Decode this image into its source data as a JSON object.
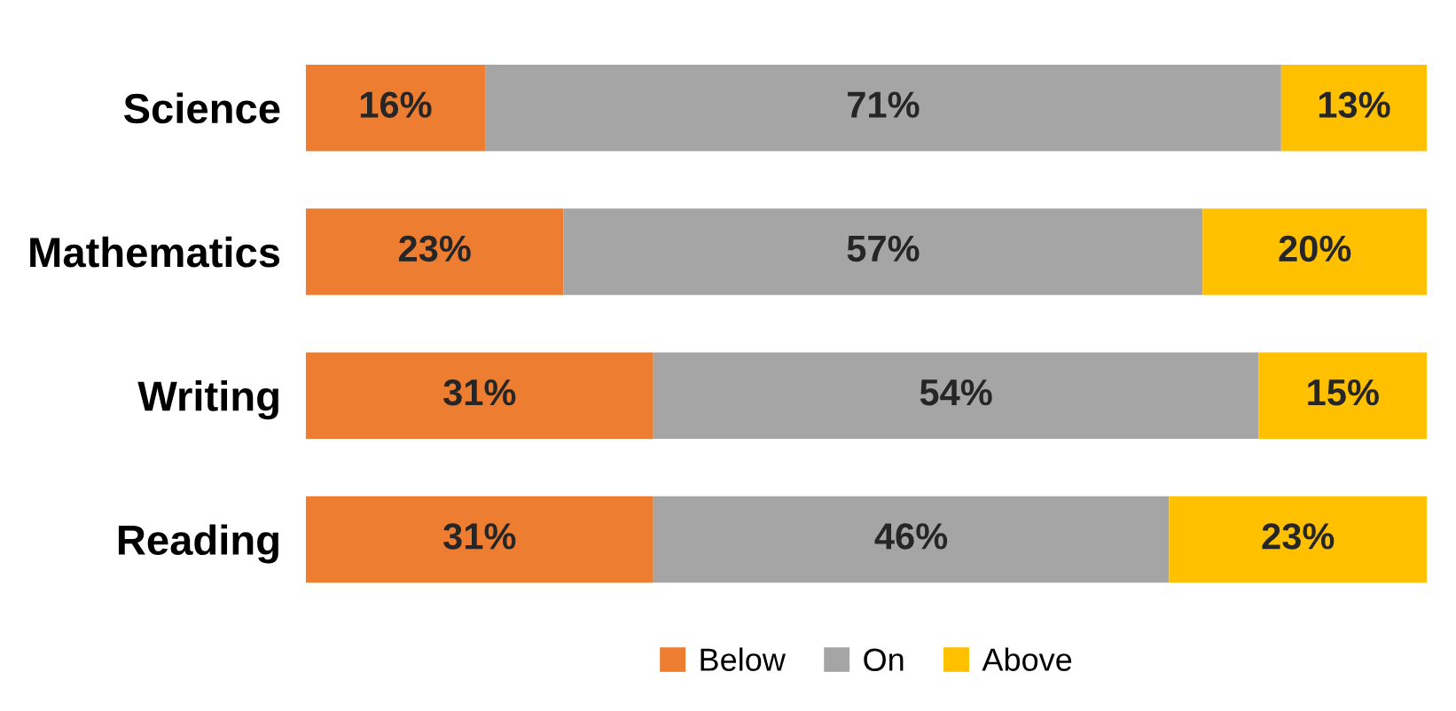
{
  "chart_data": {
    "type": "bar",
    "orientation": "horizontal",
    "stacked": true,
    "categories": [
      "Science",
      "Mathematics",
      "Writing",
      "Reading"
    ],
    "series": [
      {
        "name": "Below",
        "color": "#ed7d31",
        "values": [
          16,
          23,
          31,
          31
        ],
        "value_labels": [
          "16%",
          "23%",
          "31%",
          "31%"
        ]
      },
      {
        "name": "On",
        "color": "#a5a5a5",
        "values": [
          71,
          57,
          54,
          46
        ],
        "value_labels": [
          "71%",
          "57%",
          "54%",
          "46%"
        ]
      },
      {
        "name": "Above",
        "color": "#ffc000",
        "values": [
          13,
          20,
          15,
          23
        ],
        "value_labels": [
          "13%",
          "20%",
          "15%",
          "23%"
        ]
      }
    ],
    "tick_labels": "y",
    "legend": "bottom"
  }
}
